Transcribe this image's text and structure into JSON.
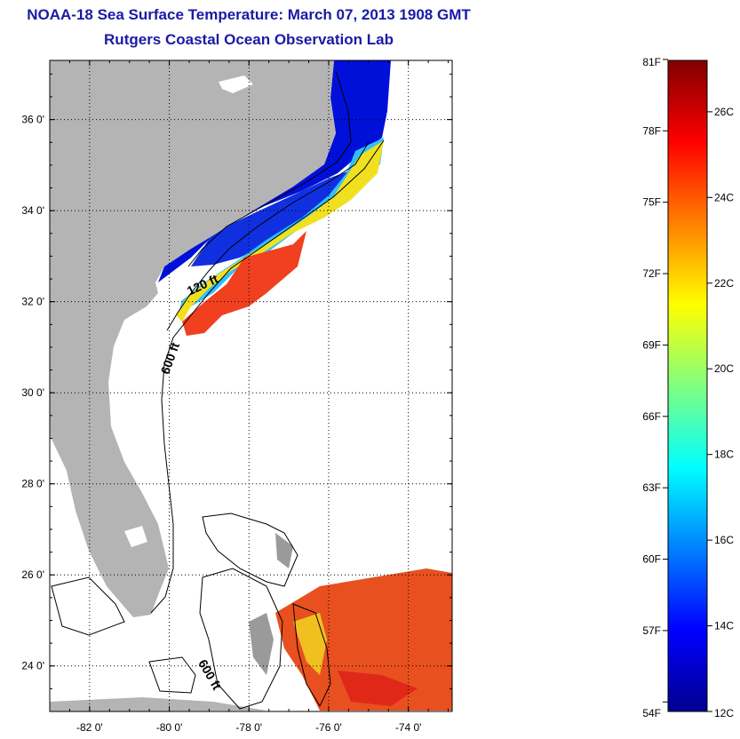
{
  "header": {
    "title": "NOAA-18 Sea Surface Temperature:  March 07, 2013 1908 GMT",
    "subtitle": "Rutgers Coastal Ocean Observation Lab"
  },
  "map": {
    "lat_range": [
      23,
      37.3
    ],
    "lon_range": [
      -83,
      -72.9
    ],
    "lat_ticks": [
      {
        "value": 36,
        "label": "36 0'"
      },
      {
        "value": 34,
        "label": "34 0'"
      },
      {
        "value": 32,
        "label": "32 0'"
      },
      {
        "value": 30,
        "label": "30 0'"
      },
      {
        "value": 28,
        "label": "28 0'"
      },
      {
        "value": 26,
        "label": "26 0'"
      },
      {
        "value": 24,
        "label": "24 0'"
      }
    ],
    "lon_ticks": [
      {
        "value": -82,
        "label": "-82 0'"
      },
      {
        "value": -80,
        "label": "-80 0'"
      },
      {
        "value": -78,
        "label": "-78 0'"
      },
      {
        "value": -76,
        "label": "-76 0'"
      },
      {
        "value": -74,
        "label": "-74 0'"
      }
    ],
    "contour_labels": [
      "120 ft",
      "600 ft",
      "600 ft"
    ],
    "colors": {
      "land": "#b4b4b4",
      "ocean": "#ffffff",
      "grid": "#000000"
    }
  },
  "colorbar": {
    "min_c": 12,
    "max_c": 27.2,
    "fahrenheit_labels": [
      "81F",
      "78F",
      "75F",
      "72F",
      "69F",
      "66F",
      "63F",
      "60F",
      "57F",
      "54F"
    ],
    "celsius_labels": [
      "26C",
      "24C",
      "22C",
      "20C",
      "18C",
      "16C",
      "14C",
      "12C"
    ],
    "colormap": [
      "#00008f",
      "#0000ff",
      "#0080ff",
      "#00ffff",
      "#80ff80",
      "#ffff00",
      "#ff8000",
      "#ff0000",
      "#800000"
    ]
  }
}
